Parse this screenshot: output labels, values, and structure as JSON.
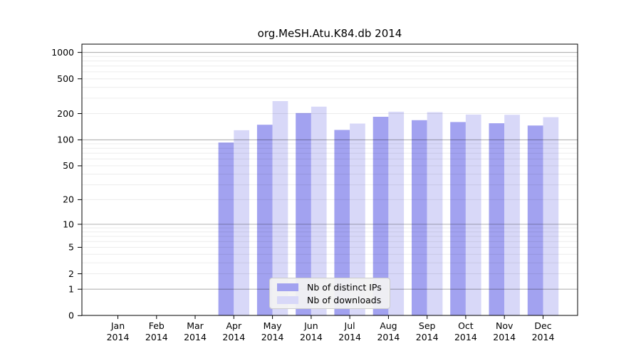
{
  "chart_data": {
    "type": "bar",
    "title": "org.MeSH.Atu.K84.db 2014",
    "xlabel": "",
    "ylabel": "",
    "categories": [
      "Jan",
      "Feb",
      "Mar",
      "Apr",
      "May",
      "Jun",
      "Jul",
      "Aug",
      "Sep",
      "Oct",
      "Nov",
      "Dec"
    ],
    "year_label": "2014",
    "series": [
      {
        "name": "Nb of distinct IPs",
        "color": "#a2a2f0",
        "values": [
          0,
          0,
          0,
          93,
          149,
          203,
          130,
          184,
          168,
          160,
          155,
          146
        ]
      },
      {
        "name": "Nb of downloads",
        "color": "#d8d8f8",
        "values": [
          0,
          0,
          0,
          129,
          278,
          240,
          154,
          210,
          208,
          195,
          194,
          182
        ]
      }
    ],
    "y_scale": "log1p",
    "ylim": [
      0,
      1250
    ],
    "y_major_ticks": [
      0,
      1,
      2,
      5,
      10,
      20,
      50,
      100,
      200,
      500,
      1000
    ],
    "y_minor_ticks": [
      3,
      4,
      6,
      7,
      8,
      9,
      30,
      40,
      60,
      70,
      80,
      90,
      300,
      400,
      600,
      700,
      800,
      900
    ],
    "emphasized_gridlines": [
      1,
      10,
      100,
      1000
    ],
    "grid": "on",
    "legend_position": "bottom-center",
    "colors": {
      "axis": "#000000",
      "major_gridline": "rgba(0,0,0,0.30)",
      "minor_gridline": "rgba(0,0,0,0.075)",
      "legend_background": "#f2f2f2",
      "legend_border": "#cccccc",
      "text": "#000000"
    }
  }
}
